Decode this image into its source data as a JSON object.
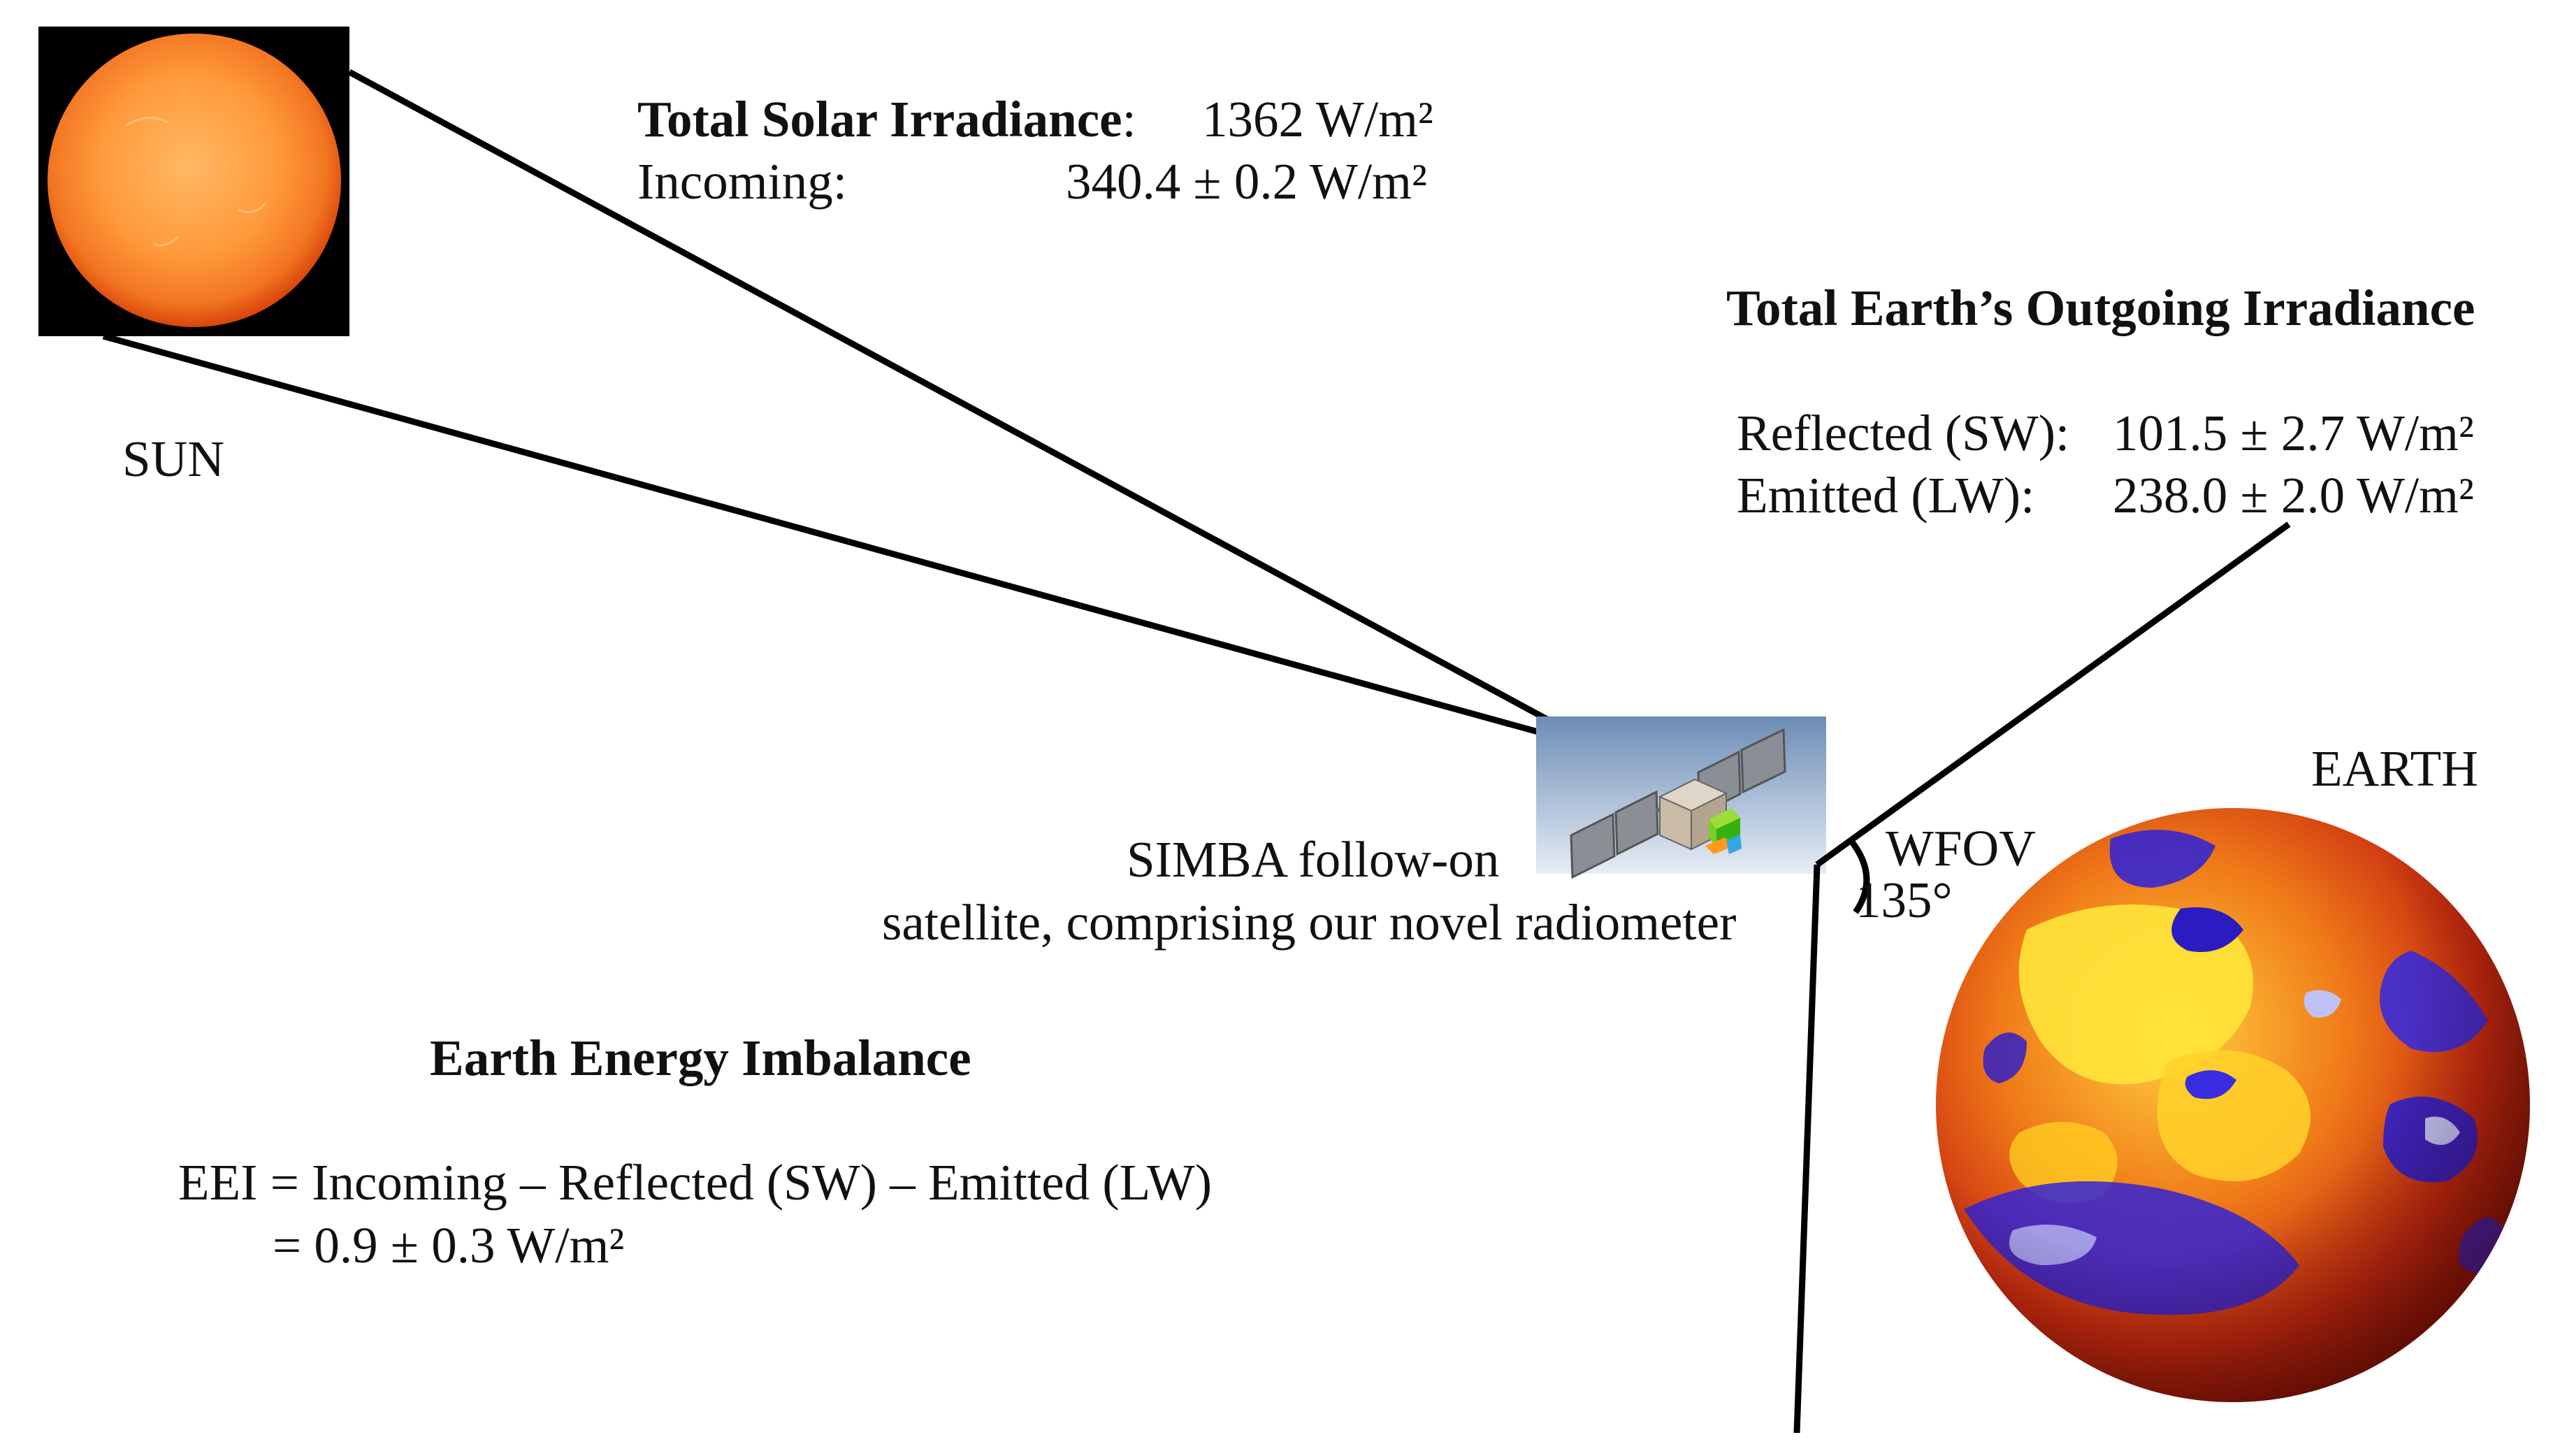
{
  "sun": {
    "label": "SUN"
  },
  "solar": {
    "tsi_label": "Total Solar Irradiance",
    "tsi_colon": ":",
    "tsi_value": "1362 W/m²",
    "incoming_label": "Incoming:",
    "incoming_value": "340.4 ± 0.2 W/m²"
  },
  "earth_out": {
    "title": "Total Earth’s Outgoing Irradiance",
    "reflected_label": "Reflected (SW):",
    "reflected_value": "101.5 ± 2.7 W/m²",
    "emitted_label": "Emitted (LW):",
    "emitted_value": "238.0 ± 2.0 W/m²"
  },
  "satellite": {
    "line1": "SIMBA follow-on",
    "line2": "satellite, comprising our novel radiometer"
  },
  "wfov": {
    "label": "WFOV",
    "angle": "135°"
  },
  "earth": {
    "label": "EARTH"
  },
  "eei": {
    "title": "Earth Energy Imbalance",
    "equation": "EEI = Incoming – Reflected (SW) – Emitted (LW)",
    "result": "= 0.9 ± 0.3 W/m²"
  },
  "colors": {
    "sun_core": "#ffa74a",
    "sun_edge": "#e8500e",
    "earth_hot": "#ffe030",
    "earth_mid": "#d8300f",
    "earth_cold": "#2a20c8",
    "line": "#000000"
  }
}
